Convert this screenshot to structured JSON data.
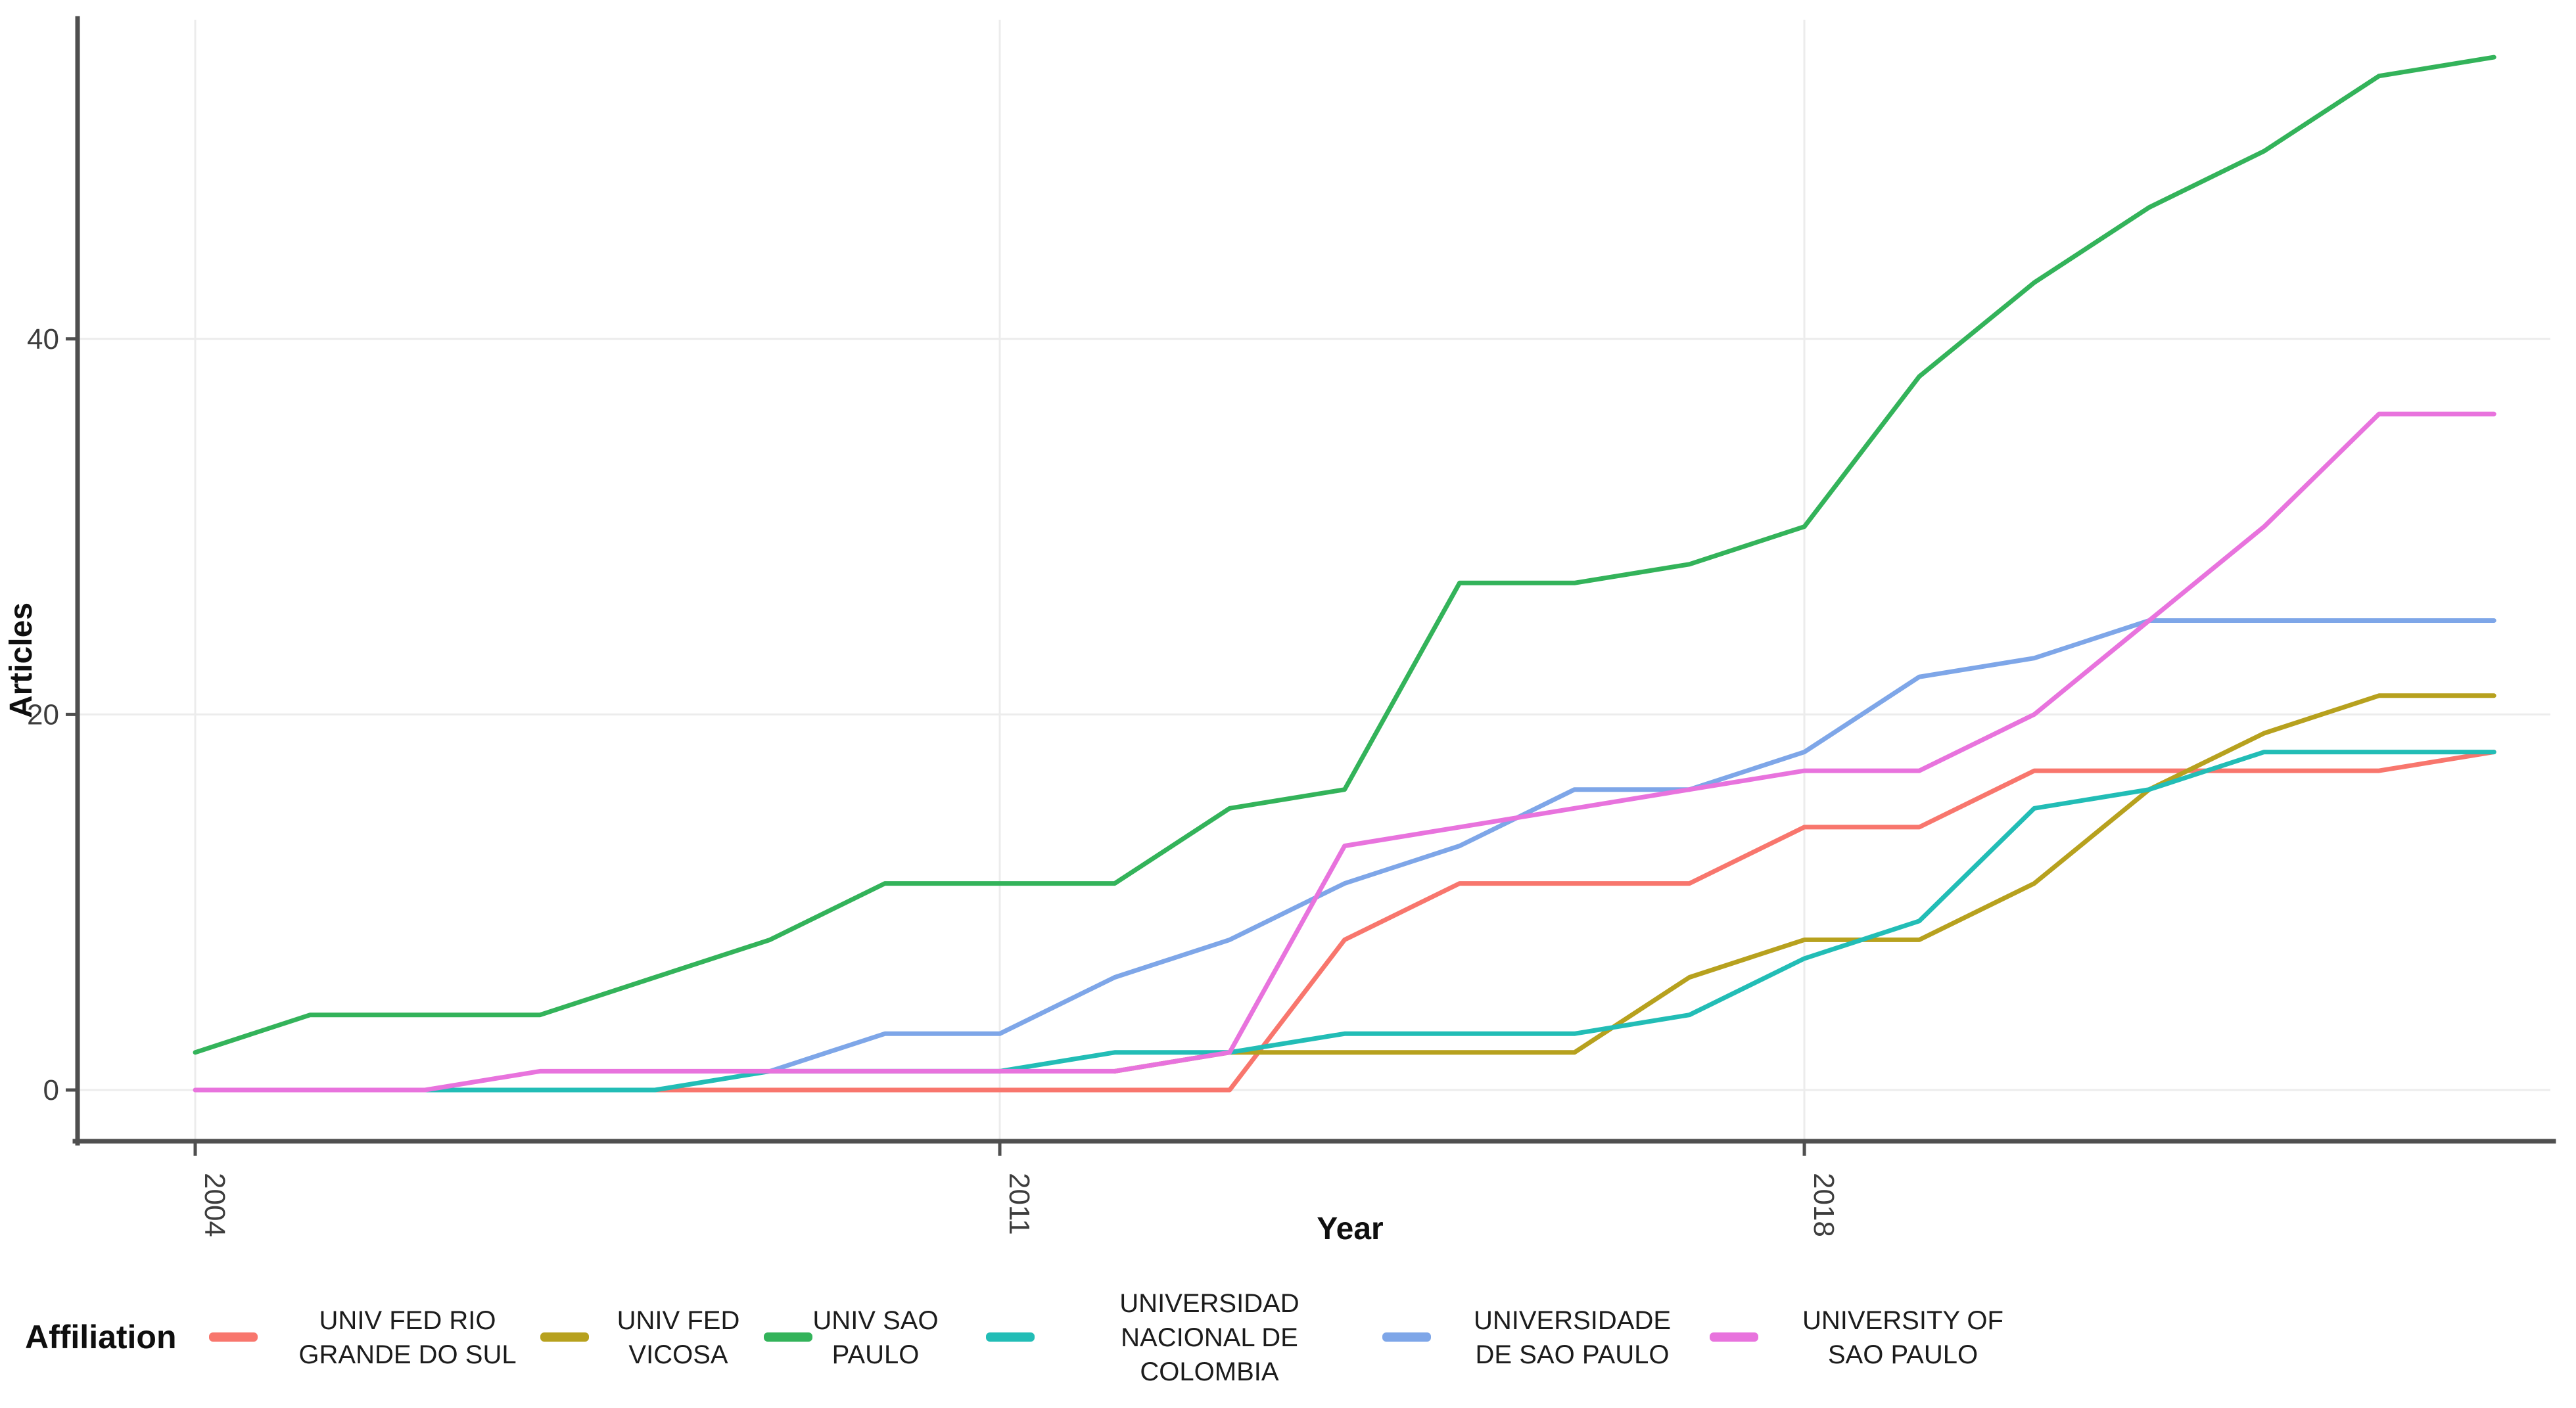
{
  "chart_data": {
    "type": "line",
    "title": "",
    "xlabel": "Year",
    "ylabel": "Articles",
    "legend_title": "Affiliation",
    "legend_position": "bottom",
    "grid": true,
    "x_ticks": [
      2004,
      2011,
      2018
    ],
    "y_ticks": [
      0,
      20,
      40
    ],
    "xlim": [
      2003,
      2024.5
    ],
    "ylim": [
      0,
      56
    ],
    "series": [
      {
        "name": "UNIV FED RIO GRANDE DO SUL",
        "legend_lines": [
          "UNIV FED RIO",
          "GRANDE DO SUL"
        ],
        "color": "#f8766d",
        "years": [
          2008,
          2009,
          2010,
          2011,
          2012,
          2013,
          2014,
          2015,
          2016,
          2017,
          2018,
          2019,
          2020,
          2021,
          2022,
          2023,
          2024
        ],
        "values": [
          0,
          0,
          0,
          0,
          0,
          0,
          8,
          11,
          11,
          11,
          14,
          14,
          17,
          17,
          17,
          17,
          18
        ]
      },
      {
        "name": "UNIV FED VICOSA",
        "legend_lines": [
          "UNIV FED",
          "VICOSA"
        ],
        "color": "#b7a11e",
        "years": [
          2012,
          2013,
          2014,
          2015,
          2016,
          2017,
          2018,
          2019,
          2020,
          2021,
          2022,
          2023,
          2024
        ],
        "values": [
          1,
          2,
          2,
          2,
          2,
          6,
          8,
          8,
          11,
          16,
          19,
          21,
          21
        ]
      },
      {
        "name": "UNIV SAO PAULO",
        "legend_lines": [
          "UNIV SAO",
          "PAULO"
        ],
        "color": "#33b35a",
        "years": [
          2004,
          2005,
          2006,
          2007,
          2008,
          2009,
          2010,
          2011,
          2012,
          2013,
          2014,
          2015,
          2016,
          2017,
          2018,
          2019,
          2020,
          2021,
          2022,
          2023,
          2024
        ],
        "values": [
          2,
          4,
          4,
          4,
          6,
          8,
          11,
          11,
          11,
          15,
          16,
          27,
          27,
          28,
          30,
          38,
          43,
          47,
          50,
          54,
          55
        ]
      },
      {
        "name": "UNIVERSIDAD NACIONAL DE COLOMBIA",
        "legend_lines": [
          "UNIVERSIDAD",
          "NACIONAL DE",
          "COLOMBIA"
        ],
        "color": "#22bdb6",
        "years": [
          2006,
          2007,
          2008,
          2009,
          2010,
          2011,
          2012,
          2013,
          2014,
          2015,
          2016,
          2017,
          2018,
          2019,
          2020,
          2021,
          2022,
          2023,
          2024
        ],
        "values": [
          0,
          0,
          0,
          1,
          1,
          1,
          2,
          2,
          3,
          3,
          3,
          4,
          7,
          9,
          15,
          16,
          18,
          18,
          18
        ]
      },
      {
        "name": "UNIVERSIDADE DE SAO PAULO",
        "legend_lines": [
          "UNIVERSIDADE",
          "DE SAO PAULO"
        ],
        "color": "#7ea6e8",
        "years": [
          2009,
          2010,
          2011,
          2012,
          2013,
          2014,
          2015,
          2016,
          2017,
          2018,
          2019,
          2020,
          2021,
          2022,
          2023,
          2024
        ],
        "values": [
          1,
          3,
          3,
          6,
          8,
          11,
          13,
          16,
          16,
          18,
          22,
          23,
          25,
          25,
          25,
          25
        ]
      },
      {
        "name": "UNIVERSITY OF SAO PAULO",
        "legend_lines": [
          "UNIVERSITY OF",
          "SAO PAULO"
        ],
        "color": "#e873dd",
        "years": [
          2004,
          2005,
          2006,
          2007,
          2008,
          2009,
          2010,
          2011,
          2012,
          2013,
          2014,
          2015,
          2016,
          2017,
          2018,
          2019,
          2020,
          2021,
          2022,
          2023,
          2024
        ],
        "values": [
          0,
          0,
          0,
          1,
          1,
          1,
          1,
          1,
          1,
          2,
          13,
          14,
          15,
          16,
          17,
          17,
          20,
          25,
          30,
          36,
          36
        ]
      }
    ]
  }
}
